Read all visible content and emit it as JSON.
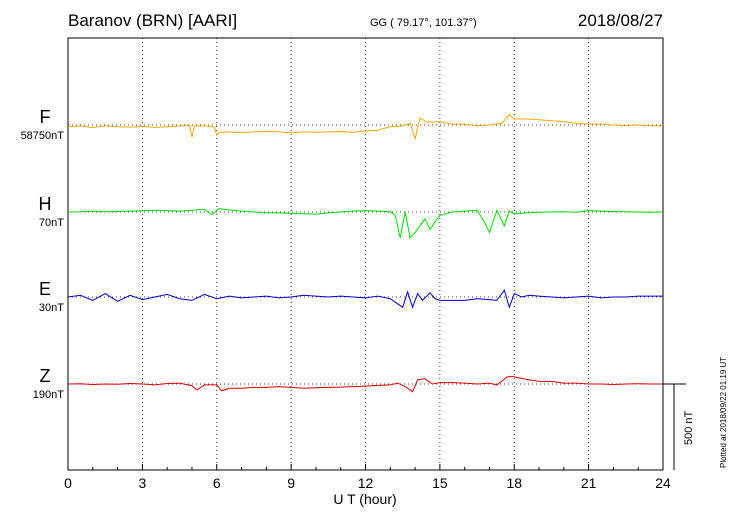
{
  "header": {
    "station": "Baranov (BRN)  [AARI]",
    "coords": "GG ( 79.17°, 101.37°)",
    "date": "2018/08/27"
  },
  "plotted_note": "Plotted at 2018/09/22 01:19 UT",
  "scale_bar_label": "500 nT",
  "chart_data": {
    "type": "line",
    "xlabel": "U T (hour)",
    "xlim": [
      0,
      24
    ],
    "x_ticks": [
      "0",
      "3",
      "6",
      "9",
      "12",
      "15",
      "18",
      "21",
      "24"
    ],
    "grid": true,
    "series": [
      {
        "name": "F",
        "baseline": "58750nT",
        "color": "#f0a800",
        "x": [
          0,
          0.5,
          1,
          1.5,
          2,
          2.5,
          3,
          3.5,
          4,
          4.5,
          4.9,
          5.0,
          5.1,
          5.5,
          5.9,
          6.0,
          6.1,
          6.5,
          7,
          7.5,
          8,
          8.5,
          9,
          9.5,
          10,
          10.5,
          11,
          11.5,
          12,
          12.5,
          13,
          13.5,
          13.8,
          14,
          14.2,
          14.5,
          15,
          15.5,
          16,
          16.5,
          17,
          17.5,
          17.8,
          18,
          18.5,
          19,
          19.5,
          20,
          20.5,
          21,
          21.5,
          22,
          22.5,
          23,
          23.5,
          24
        ],
        "y": [
          -10,
          -5,
          -15,
          -5,
          -10,
          -12,
          -8,
          -14,
          -10,
          -5,
          -3,
          -70,
          -5,
          -5,
          -12,
          -60,
          -45,
          -40,
          -45,
          -40,
          -38,
          -40,
          -45,
          -40,
          -42,
          -40,
          -38,
          -42,
          -35,
          -30,
          -10,
          -5,
          10,
          -80,
          40,
          15,
          20,
          5,
          5,
          -5,
          0,
          10,
          60,
          35,
          35,
          30,
          25,
          20,
          10,
          5,
          5,
          0,
          -5,
          0,
          -5,
          -5
        ]
      },
      {
        "name": "H",
        "baseline": "70nT",
        "color": "#00dd00",
        "x": [
          0,
          0.5,
          1,
          1.5,
          2,
          2.5,
          3,
          3.5,
          4,
          4.5,
          5,
          5.5,
          5.8,
          6,
          6.1,
          6.5,
          7,
          7.5,
          8,
          8.5,
          9,
          9.5,
          10,
          10.5,
          11,
          11.5,
          12,
          12.5,
          13,
          13.2,
          13.4,
          13.6,
          13.8,
          14,
          14.2,
          14.4,
          14.6,
          14.8,
          15,
          15.5,
          16,
          16.5,
          16.8,
          17,
          17.3,
          17.6,
          17.8,
          18,
          18.5,
          19,
          19.5,
          20,
          20.5,
          21,
          21.5,
          22,
          22.5,
          23,
          23.5,
          24
        ],
        "y": [
          0,
          2,
          5,
          2,
          3,
          5,
          8,
          10,
          8,
          5,
          10,
          15,
          -15,
          10,
          20,
          12,
          5,
          0,
          -5,
          -5,
          -8,
          -10,
          -12,
          -5,
          0,
          5,
          8,
          5,
          3,
          -20,
          -150,
          0,
          -150,
          -120,
          -80,
          -40,
          -100,
          -60,
          -20,
          0,
          5,
          10,
          -60,
          -120,
          10,
          -80,
          5,
          -10,
          -5,
          -2,
          0,
          2,
          -2,
          8,
          5,
          3,
          2,
          0,
          -2,
          0
        ]
      },
      {
        "name": "E",
        "baseline": "30nT",
        "color": "#0000cc",
        "x": [
          0,
          0.5,
          1,
          1.5,
          2,
          2.5,
          3,
          3.5,
          4,
          4.5,
          5,
          5.5,
          6,
          6.5,
          7,
          7.5,
          8,
          8.5,
          9,
          9.5,
          10,
          10.5,
          11,
          11.5,
          12,
          12.5,
          13,
          13.2,
          13.5,
          13.7,
          13.9,
          14.1,
          14.3,
          14.6,
          14.8,
          15,
          15.5,
          16,
          16.5,
          17,
          17.3,
          17.6,
          17.8,
          18,
          18.3,
          18.6,
          19,
          19.5,
          20,
          20.5,
          21,
          21.5,
          22,
          22.5,
          23,
          23.5,
          24
        ],
        "y": [
          0,
          10,
          -20,
          20,
          -25,
          10,
          -15,
          0,
          15,
          -10,
          -20,
          15,
          -10,
          5,
          -5,
          0,
          5,
          -5,
          0,
          10,
          5,
          0,
          5,
          0,
          -5,
          5,
          -10,
          -30,
          -60,
          30,
          -60,
          20,
          -20,
          25,
          -10,
          -20,
          -20,
          -20,
          -10,
          -15,
          -20,
          40,
          -60,
          20,
          0,
          10,
          5,
          0,
          -5,
          0,
          5,
          -5,
          0,
          0,
          5,
          5,
          5
        ]
      },
      {
        "name": "Z",
        "baseline": "190nT",
        "color": "#dd0000",
        "x": [
          0,
          0.5,
          1,
          1.5,
          2,
          2.5,
          3,
          3.5,
          4,
          4.5,
          5,
          5.2,
          5.5,
          6,
          6.2,
          6.5,
          7,
          7.5,
          8,
          8.5,
          9,
          9.5,
          10,
          10.5,
          11,
          11.5,
          12,
          12.5,
          13,
          13.3,
          13.6,
          13.9,
          14.1,
          14.4,
          14.7,
          15,
          15.5,
          16,
          16.5,
          17,
          17.3,
          17.7,
          17.9,
          18.2,
          18.6,
          19,
          19.5,
          20,
          20.5,
          21,
          21.5,
          22,
          22.5,
          23,
          23.5,
          24
        ],
        "y": [
          0,
          2,
          -3,
          0,
          -2,
          3,
          0,
          -5,
          3,
          5,
          -10,
          -35,
          -5,
          -5,
          -40,
          -25,
          -25,
          -20,
          -20,
          -15,
          -20,
          -25,
          -22,
          -20,
          -18,
          -15,
          -12,
          -8,
          -5,
          5,
          -15,
          -45,
          25,
          30,
          0,
          8,
          8,
          5,
          0,
          5,
          -5,
          40,
          45,
          35,
          25,
          15,
          15,
          5,
          5,
          0,
          0,
          -3,
          0,
          2,
          0,
          0
        ]
      }
    ]
  }
}
